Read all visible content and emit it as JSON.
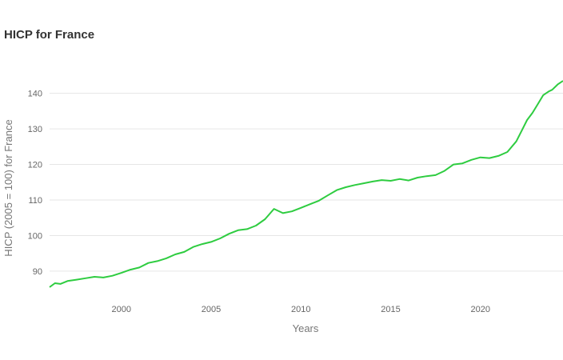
{
  "chart_data": {
    "type": "line",
    "title": "HICP for France",
    "xlabel": "Years",
    "ylabel": "HICP (2005 = 100) for France",
    "xlim": [
      1996.0,
      2024.6
    ],
    "ylim": [
      83,
      146
    ],
    "xticks": [
      2000,
      2005,
      2010,
      2015,
      2020
    ],
    "yticks": [
      90,
      100,
      110,
      120,
      130,
      140
    ],
    "grid": "horizontal",
    "legend": "none",
    "series": [
      {
        "color": "#2ecc40",
        "x": [
          1996.0,
          1996.3,
          1996.6,
          1997.0,
          1997.5,
          1998.0,
          1998.5,
          1999.0,
          1999.5,
          2000.0,
          2000.5,
          2001.0,
          2001.5,
          2002.0,
          2002.5,
          2003.0,
          2003.5,
          2004.0,
          2004.5,
          2005.0,
          2005.5,
          2006.0,
          2006.5,
          2007.0,
          2007.5,
          2008.0,
          2008.5,
          2009.0,
          2009.5,
          2010.0,
          2010.5,
          2011.0,
          2011.5,
          2012.0,
          2012.5,
          2013.0,
          2013.5,
          2014.0,
          2014.5,
          2015.0,
          2015.5,
          2016.0,
          2016.5,
          2017.0,
          2017.5,
          2018.0,
          2018.5,
          2019.0,
          2019.5,
          2020.0,
          2020.5,
          2021.0,
          2021.5,
          2022.0,
          2022.3,
          2022.6,
          2022.9,
          2023.2,
          2023.5,
          2023.8,
          2024.0,
          2024.3,
          2024.6
        ],
        "y": [
          85.5,
          86.6,
          86.4,
          87.2,
          87.6,
          88.0,
          88.4,
          88.2,
          88.7,
          89.5,
          90.4,
          91.0,
          92.3,
          92.8,
          93.6,
          94.7,
          95.4,
          96.8,
          97.6,
          98.2,
          99.2,
          100.5,
          101.5,
          101.8,
          102.8,
          104.6,
          107.5,
          106.3,
          106.8,
          107.8,
          108.8,
          109.8,
          111.3,
          112.8,
          113.6,
          114.2,
          114.7,
          115.2,
          115.6,
          115.4,
          115.9,
          115.5,
          116.3,
          116.7,
          117.0,
          118.2,
          120.0,
          120.3,
          121.3,
          122.0,
          121.8,
          122.4,
          123.5,
          126.5,
          129.5,
          132.5,
          134.5,
          137.0,
          139.5,
          140.5,
          141.0,
          142.5,
          143.5
        ]
      }
    ]
  }
}
